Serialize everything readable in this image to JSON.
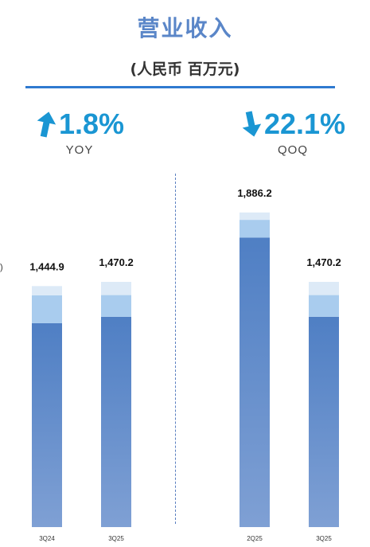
{
  "header": {
    "title": "营业收入",
    "subtitle": "(人民币 百万元)"
  },
  "metrics": {
    "yoy": {
      "value": "1.8%",
      "label": "YOY",
      "direction": "up"
    },
    "qoq": {
      "value": "22.1%",
      "label": "QOQ",
      "direction": "down"
    }
  },
  "edge_mark": ")",
  "colors": {
    "title": "#5a86c8",
    "rule": "#2f7ad0",
    "metric": "#1a96d3",
    "segment_main": "#4f7fc4",
    "segment_mid": "#a9ccee",
    "segment_top": "#ddeaf7"
  },
  "chart_data": {
    "type": "bar",
    "stacked": true,
    "categories": [
      "3Q24",
      "3Q25",
      "2Q25",
      "3Q25"
    ],
    "totals": [
      1444.9,
      1470.2,
      1886.2,
      1470.2
    ],
    "data_labels": [
      "1,444.9",
      "1,470.2",
      "1,886.2",
      "1,470.2"
    ],
    "series": [
      {
        "values": [
          1222.0,
          1261.0,
          1736.0,
          1261.0
        ]
      },
      {
        "values": [
          168.0,
          130.0,
          106.0,
          130.0
        ]
      },
      {
        "values": [
          54.9,
          79.2,
          44.2,
          79.2
        ]
      }
    ],
    "groups": [
      "YOY",
      "QOQ"
    ]
  }
}
